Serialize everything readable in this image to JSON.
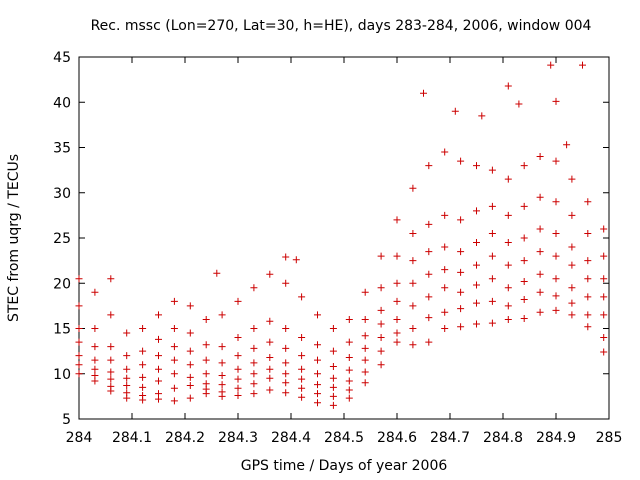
{
  "chart_data": {
    "type": "scatter",
    "title": "Rec. mssc (Lon=270, Lat=30, h=HE), days 283-284, 2006, window 004",
    "xlabel": "GPS time / Days of year 2006",
    "ylabel": "STEC from uqrg / TECUs",
    "xlim": [
      284,
      285
    ],
    "ylim": [
      5,
      45
    ],
    "xticks": [
      284,
      284.1,
      284.2,
      284.3,
      284.4,
      284.5,
      284.6,
      284.7,
      284.8,
      284.9,
      285
    ],
    "xtick_labels": [
      "284",
      "284.1",
      "284.2",
      "284.3",
      "284.4",
      "284.5",
      "284.6",
      "284.7",
      "284.8",
      "284.9",
      "285"
    ],
    "yticks": [
      5,
      10,
      15,
      20,
      25,
      30,
      35,
      40,
      45
    ],
    "ytick_labels": [
      "5",
      "10",
      "15",
      "20",
      "25",
      "30",
      "35",
      "40",
      "45"
    ],
    "grid": false,
    "marker": "+",
    "color": "#cc0000",
    "series": [
      {
        "name": "",
        "tracks": [
          {
            "x": [
              284.0,
              284.03,
              284.06,
              284.09,
              284.12,
              284.15,
              284.18,
              284.21,
              284.24,
              284.27,
              284.3,
              284.33,
              284.36,
              284.39,
              284.42,
              284.45,
              284.48,
              284.51,
              284.54,
              284.57,
              284.6,
              284.63,
              284.66,
              284.69,
              284.72,
              284.75,
              284.78,
              284.81,
              284.84,
              284.87,
              284.9,
              284.93,
              284.96,
              284.99
            ],
            "y": [
              10.0,
              9.2,
              8.1,
              7.3,
              7.1,
              7.2,
              7.0,
              7.3,
              7.8,
              7.5,
              7.6,
              7.8,
              8.2,
              7.9,
              7.4,
              6.8,
              6.5,
              7.3,
              9.0,
              11.0,
              13.5,
              13.2,
              13.5,
              15.0,
              15.2,
              15.5,
              15.6,
              16.0,
              16.1,
              16.8,
              17.0,
              16.5,
              15.2,
              12.4
            ]
          },
          {
            "x": [
              284.0,
              284.03,
              284.06,
              284.09,
              284.12,
              284.15,
              284.18,
              284.21,
              284.24,
              284.27,
              284.3,
              284.33,
              284.36,
              284.39,
              284.42,
              284.45,
              284.48,
              284.51,
              284.54,
              284.57,
              284.6,
              284.63,
              284.66,
              284.69,
              284.72,
              284.75,
              284.78,
              284.81,
              284.84,
              284.87,
              284.9,
              284.93,
              284.96,
              284.99
            ],
            "y": [
              11.0,
              9.8,
              8.6,
              7.9,
              7.6,
              7.8,
              8.4,
              8.7,
              8.3,
              8.0,
              8.4,
              8.9,
              9.5,
              9.0,
              8.4,
              7.8,
              7.5,
              8.2,
              10.2,
              12.5,
              14.5,
              15.0,
              16.2,
              16.8,
              17.2,
              17.8,
              18.0,
              17.5,
              18.2,
              19.0,
              18.6,
              17.8,
              16.5,
              14.0
            ]
          },
          {
            "x": [
              284.0,
              284.03,
              284.06,
              284.09,
              284.12,
              284.15,
              284.18,
              284.21,
              284.24,
              284.27,
              284.3,
              284.33,
              284.36,
              284.39,
              284.42,
              284.45,
              284.48,
              284.51,
              284.54,
              284.57,
              284.6,
              284.63,
              284.66,
              284.69,
              284.72,
              284.75,
              284.78,
              284.81,
              284.84,
              284.87,
              284.9,
              284.93,
              284.96,
              284.99
            ],
            "y": [
              12.0,
              10.5,
              9.4,
              8.7,
              8.5,
              9.2,
              10.0,
              9.6,
              8.9,
              8.8,
              9.4,
              10.0,
              10.5,
              10.0,
              9.4,
              8.8,
              8.5,
              9.2,
              11.5,
              14.0,
              16.0,
              17.5,
              18.5,
              19.5,
              19.0,
              19.8,
              20.5,
              19.5,
              20.2,
              21.0,
              20.5,
              19.5,
              18.5,
              16.5
            ]
          },
          {
            "x": [
              284.0,
              284.03,
              284.06,
              284.09,
              284.12,
              284.15,
              284.18,
              284.21,
              284.24,
              284.27,
              284.3,
              284.33,
              284.36,
              284.39,
              284.42,
              284.45,
              284.48,
              284.51,
              284.54,
              284.57,
              284.6,
              284.63,
              284.66,
              284.69,
              284.72,
              284.75,
              284.78,
              284.81,
              284.84,
              284.87,
              284.9,
              284.93,
              284.96,
              284.99
            ],
            "y": [
              13.5,
              11.5,
              10.2,
              9.5,
              9.6,
              10.5,
              11.5,
              11.0,
              10.0,
              9.8,
              10.5,
              11.2,
              11.8,
              11.2,
              10.5,
              10.0,
              9.5,
              10.4,
              12.8,
              15.5,
              18.0,
              20.0,
              21.0,
              21.5,
              21.2,
              22.0,
              23.0,
              22.0,
              22.5,
              23.5,
              23.0,
              22.0,
              20.5,
              18.5
            ]
          },
          {
            "x": [
              284.0,
              284.03,
              284.06,
              284.09,
              284.12,
              284.15,
              284.18,
              284.21,
              284.24,
              284.27,
              284.3,
              284.33,
              284.36,
              284.39,
              284.42,
              284.45,
              284.48,
              284.51,
              284.54,
              284.57,
              284.6,
              284.63,
              284.66,
              284.69,
              284.72,
              284.75,
              284.78,
              284.81,
              284.84,
              284.87,
              284.9,
              284.93,
              284.96,
              284.99
            ],
            "y": [
              15.0,
              13.0,
              11.5,
              10.5,
              11.0,
              12.0,
              13.0,
              12.5,
              11.5,
              11.2,
              12.0,
              12.8,
              13.5,
              12.8,
              12.0,
              11.5,
              10.8,
              11.8,
              14.2,
              17.0,
              20.0,
              22.5,
              23.5,
              24.0,
              23.5,
              24.5,
              25.5,
              24.5,
              25.0,
              26.0,
              25.5,
              24.0,
              22.5,
              20.5
            ]
          },
          {
            "x": [
              284.0,
              284.03,
              284.06,
              284.09,
              284.12,
              284.15,
              284.18,
              284.21,
              284.24,
              284.27,
              284.3,
              284.33,
              284.36,
              284.39,
              284.42,
              284.45,
              284.48,
              284.51,
              284.54,
              284.57,
              284.6,
              284.63,
              284.66,
              284.69,
              284.72,
              284.75,
              284.78,
              284.81,
              284.84,
              284.87,
              284.9,
              284.93,
              284.96,
              284.99
            ],
            "y": [
              17.5,
              15.0,
              13.0,
              12.0,
              12.5,
              13.8,
              15.0,
              14.5,
              13.2,
              13.0,
              14.0,
              15.0,
              15.8,
              15.0,
              14.0,
              13.2,
              12.5,
              13.5,
              16.0,
              19.5,
              23.0,
              25.5,
              26.5,
              27.5,
              27.0,
              28.0,
              28.5,
              27.5,
              28.5,
              29.5,
              29.0,
              27.5,
              25.5,
              23.0
            ]
          },
          {
            "x": [
              284.0,
              284.03,
              284.06,
              284.09,
              284.12,
              284.15,
              284.18,
              284.21,
              284.24,
              284.27,
              284.3,
              284.33,
              284.36,
              284.39,
              284.42,
              284.45,
              284.48,
              284.51,
              284.54,
              284.57,
              284.6,
              284.63,
              284.66,
              284.69,
              284.72,
              284.75,
              284.78,
              284.81,
              284.84,
              284.87,
              284.9,
              284.93,
              284.96,
              284.99
            ],
            "y": [
              20.5,
              19.0,
              16.5,
              14.5,
              15.0,
              16.5,
              18.0,
              17.5,
              16.0,
              16.5,
              18.0,
              19.5,
              21.0,
              20.0,
              18.5,
              16.5,
              15.0,
              16.0,
              19.0,
              23.0,
              27.0,
              30.5,
              33.0,
              34.5,
              33.5,
              33.0,
              32.5,
              31.5,
              33.0,
              34.0,
              33.5,
              31.5,
              29.0,
              26.0
            ]
          }
        ],
        "outliers": {
          "x": [
            284.06,
            284.26,
            284.39,
            284.41,
            284.65,
            284.71,
            284.76,
            284.81,
            284.83,
            284.89,
            284.9,
            284.95,
            284.92
          ],
          "y": [
            20.5,
            21.1,
            22.9,
            22.6,
            41.0,
            39.0,
            38.5,
            41.8,
            39.8,
            44.1,
            40.1,
            44.1,
            35.3
          ]
        }
      }
    ]
  }
}
